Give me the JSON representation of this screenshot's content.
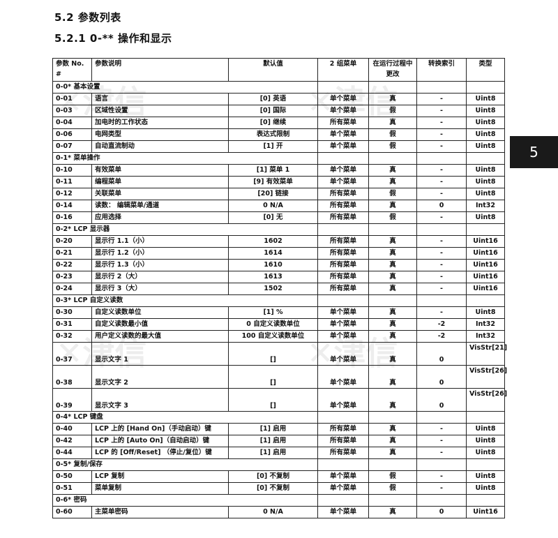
{
  "heading": "5.2  参数列表",
  "subheading": "5.2.1 0-** 操作和显示",
  "side_tab": "5",
  "watermark": "津信 JINXIN 值得信赖的变频器专家",
  "columns": [
    "参数 No. #",
    "参数说明",
    "默认值",
    "2 组菜单",
    "在运行过程中更改",
    "转换索引",
    "类型"
  ],
  "rows": [
    {
      "group": "0-0* 基本设置"
    },
    {
      "cells": [
        "0-01",
        "语言",
        "[0] 英语",
        "单个菜单",
        "真",
        "-",
        "Uint8"
      ]
    },
    {
      "cells": [
        "0-03",
        "区域性设置",
        "[0] 国际",
        "单个菜单",
        "假",
        "-",
        "Uint8"
      ]
    },
    {
      "cells": [
        "0-04",
        "加电时的工作状态",
        "[0] 继续",
        "所有菜单",
        "真",
        "-",
        "Uint8"
      ]
    },
    {
      "cells": [
        "0-06",
        "电网类型",
        "表达式限制",
        "单个菜单",
        "假",
        "-",
        "Uint8"
      ]
    },
    {
      "cells": [
        "0-07",
        "自动直流制动",
        "[1] 开",
        "单个菜单",
        "假",
        "-",
        "Uint8"
      ]
    },
    {
      "group": "0-1* 菜单操作"
    },
    {
      "cells": [
        "0-10",
        "有效菜单",
        "[1] 菜单 1",
        "单个菜单",
        "真",
        "-",
        "Uint8"
      ]
    },
    {
      "cells": [
        "0-11",
        "编程菜单",
        "[9] 有效菜单",
        "单个菜单",
        "真",
        "-",
        "Uint8"
      ]
    },
    {
      "cells": [
        "0-12",
        "关联菜单",
        "[20] 链接",
        "所有菜单",
        "假",
        "-",
        "Uint8"
      ]
    },
    {
      "cells": [
        "0-14",
        "读数： 编辑菜单/通道",
        "0 N/A",
        "所有菜单",
        "真",
        "0",
        "Int32"
      ]
    },
    {
      "cells": [
        "0-16",
        "应用选择",
        "[0] 无",
        "所有菜单",
        "假",
        "-",
        "Uint8"
      ]
    },
    {
      "group": "0-2* LCP 显示器"
    },
    {
      "cells": [
        "0-20",
        "显示行 1.1（小）",
        "1602",
        "所有菜单",
        "真",
        "-",
        "Uint16"
      ]
    },
    {
      "cells": [
        "0-21",
        "显示行 1.2（小）",
        "1614",
        "所有菜单",
        "真",
        "-",
        "Uint16"
      ]
    },
    {
      "cells": [
        "0-22",
        "显示行 1.3（小）",
        "1610",
        "所有菜单",
        "真",
        "-",
        "Uint16"
      ]
    },
    {
      "cells": [
        "0-23",
        "显示行 2（大）",
        "1613",
        "所有菜单",
        "真",
        "-",
        "Uint16"
      ]
    },
    {
      "cells": [
        "0-24",
        "显示行 3（大）",
        "1502",
        "所有菜单",
        "真",
        "-",
        "Uint16"
      ]
    },
    {
      "group": "0-3* LCP 自定义读数"
    },
    {
      "cells": [
        "0-30",
        "自定义读数单位",
        "[1] %",
        "单个菜单",
        "真",
        "-",
        "Uint8"
      ]
    },
    {
      "cells": [
        "0-31",
        "自定义读数最小值",
        "0 自定义读数单位",
        "单个菜单",
        "真",
        "-2",
        "Int32"
      ]
    },
    {
      "cells": [
        "0-32",
        "用户定义读数的最大值",
        "100 自定义读数单位",
        "单个菜单",
        "真",
        "-2",
        "Int32"
      ]
    },
    {
      "tall": true,
      "cells": [
        "0-37",
        "显示文字 1",
        "[]",
        "单个菜单",
        "真",
        "0",
        "VisStr[21]"
      ]
    },
    {
      "tall": true,
      "cells": [
        "0-38",
        "显示文字 2",
        "[]",
        "单个菜单",
        "真",
        "0",
        "VisStr[26]"
      ]
    },
    {
      "tall": true,
      "cells": [
        "0-39",
        "显示文字 3",
        "[]",
        "单个菜单",
        "真",
        "0",
        "VisStr[26]"
      ]
    },
    {
      "group": "0-4* LCP 键盘"
    },
    {
      "cells": [
        "0-40",
        "LCP 上的 [Hand On]（手动启动）键",
        "[1] 启用",
        "所有菜单",
        "真",
        "-",
        "Uint8"
      ]
    },
    {
      "cells": [
        "0-42",
        "LCP 上的 [Auto On]（自动启动）键",
        "[1] 启用",
        "所有菜单",
        "真",
        "-",
        "Uint8"
      ]
    },
    {
      "cells": [
        "0-44",
        "LCP 的 [Off/Reset] （停止/复位）键",
        "[1] 启用",
        "所有菜单",
        "真",
        "-",
        "Uint8"
      ]
    },
    {
      "group": "0-5* 复制/保存"
    },
    {
      "cells": [
        "0-50",
        "LCP 复制",
        "[0] 不复制",
        "单个菜单",
        "假",
        "-",
        "Uint8"
      ]
    },
    {
      "cells": [
        "0-51",
        "菜单复制",
        "[0] 不复制",
        "单个菜单",
        "假",
        "-",
        "Uint8"
      ]
    },
    {
      "group": "0-6* 密码"
    },
    {
      "cells": [
        "0-60",
        "主菜单密码",
        "0 N/A",
        "单个菜单",
        "真",
        "0",
        "Uint16"
      ]
    }
  ]
}
